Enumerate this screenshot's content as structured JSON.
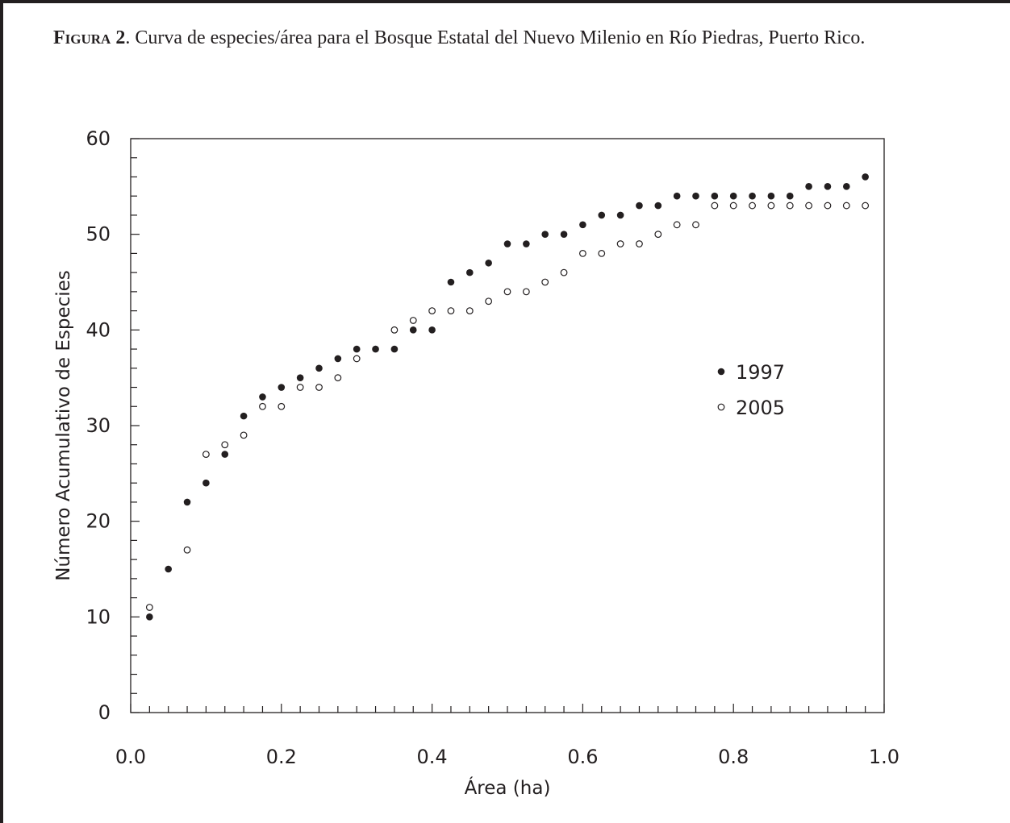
{
  "caption": {
    "label": "Figura",
    "number": "2",
    "text": ".  Curva de especies/área para el Bosque Estatal del Nuevo Milenio en Río Piedras, Puerto Rico."
  },
  "chart_data": {
    "type": "scatter",
    "xlabel": "Área (ha)",
    "ylabel": "Número Acumulativo de Especies",
    "xlim": [
      0,
      1.0
    ],
    "ylim": [
      0,
      60
    ],
    "xticks": [
      "0.0",
      "0.2",
      "0.4",
      "0.6",
      "0.8",
      "1.0"
    ],
    "yticks": [
      "0",
      "10",
      "20",
      "30",
      "40",
      "50",
      "60"
    ],
    "legend_position": "right-middle",
    "series": [
      {
        "name": "1997",
        "marker": "filled-circle",
        "x": [
          0.025,
          0.05,
          0.075,
          0.1,
          0.125,
          0.15,
          0.175,
          0.2,
          0.225,
          0.25,
          0.275,
          0.3,
          0.325,
          0.35,
          0.375,
          0.4,
          0.425,
          0.45,
          0.475,
          0.5,
          0.525,
          0.55,
          0.575,
          0.6,
          0.625,
          0.65,
          0.675,
          0.7,
          0.725,
          0.75,
          0.775,
          0.8,
          0.825,
          0.85,
          0.875,
          0.9,
          0.925,
          0.95,
          0.975
        ],
        "y": [
          10,
          15,
          22,
          24,
          27,
          31,
          33,
          34,
          35,
          36,
          37,
          38,
          38,
          38,
          40,
          40,
          45,
          46,
          47,
          49,
          49,
          50,
          50,
          51,
          52,
          52,
          53,
          53,
          54,
          54,
          54,
          54,
          54,
          54,
          54,
          55,
          55,
          55,
          56
        ]
      },
      {
        "name": "2005",
        "marker": "open-circle",
        "x": [
          0.025,
          0.075,
          0.1,
          0.125,
          0.15,
          0.175,
          0.2,
          0.225,
          0.25,
          0.275,
          0.3,
          0.35,
          0.375,
          0.4,
          0.425,
          0.45,
          0.475,
          0.5,
          0.525,
          0.55,
          0.575,
          0.6,
          0.625,
          0.65,
          0.675,
          0.7,
          0.725,
          0.75,
          0.775,
          0.8,
          0.825,
          0.85,
          0.875,
          0.9,
          0.925,
          0.95,
          0.975
        ],
        "y": [
          11,
          17,
          27,
          28,
          29,
          32,
          32,
          34,
          34,
          35,
          37,
          40,
          41,
          42,
          42,
          42,
          43,
          44,
          44,
          45,
          46,
          48,
          48,
          49,
          49,
          50,
          51,
          51,
          53,
          53,
          53,
          53,
          53,
          53,
          53,
          53,
          53
        ]
      }
    ]
  }
}
